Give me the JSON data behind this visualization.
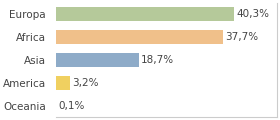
{
  "categories": [
    "Europa",
    "Africa",
    "Asia",
    "America",
    "Oceania"
  ],
  "values": [
    40.3,
    37.7,
    18.7,
    3.2,
    0.1
  ],
  "labels": [
    "40,3%",
    "37,7%",
    "18,7%",
    "3,2%",
    "0,1%"
  ],
  "bar_colors": [
    "#b5c99a",
    "#f0c08a",
    "#8eabc8",
    "#f0d060",
    "#d0d0d0"
  ],
  "background_color": "#ffffff",
  "xlim": [
    0,
    50
  ],
  "bar_height": 0.6,
  "label_fontsize": 7.5,
  "tick_fontsize": 7.5
}
